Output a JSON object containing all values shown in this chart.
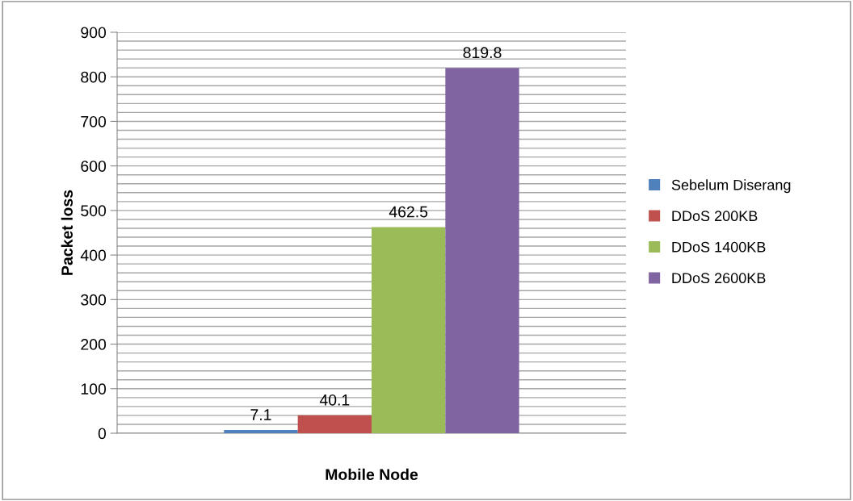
{
  "chart_data": {
    "type": "bar",
    "xlabel": "Mobile Node",
    "ylabel": "Packet loss",
    "categories": [
      null
    ],
    "series": [
      {
        "name": "Sebelum Diserang",
        "color": "#4f81bd",
        "values": [
          7.1
        ]
      },
      {
        "name": "DDoS 200KB",
        "color": "#c0504d",
        "values": [
          40.1
        ]
      },
      {
        "name": "DDoS 1400KB",
        "color": "#9bbb59",
        "values": [
          462.5
        ]
      },
      {
        "name": "DDoS 2600KB",
        "color": "#8064a2",
        "values": [
          819.8
        ]
      }
    ],
    "ylim": [
      0,
      900
    ],
    "yticks": [
      0,
      {
        "value": 20,
        "label": null
      },
      {
        "value": 40,
        "label": null
      },
      {
        "value": 60,
        "label": null
      },
      {
        "value": 80,
        "label": null
      },
      100,
      {
        "value": 120,
        "label": null
      },
      {
        "value": 140,
        "label": null
      },
      {
        "value": 160,
        "label": null
      },
      {
        "value": 180,
        "label": null
      },
      200,
      {
        "value": 220,
        "label": null
      },
      {
        "value": 240,
        "label": null
      },
      {
        "value": 260,
        "label": null
      },
      {
        "value": 280,
        "label": null
      },
      300,
      {
        "value": 320,
        "label": null
      },
      {
        "value": 340,
        "label": null
      },
      {
        "value": 360,
        "label": null
      },
      {
        "value": 380,
        "label": null
      },
      400,
      {
        "value": 420,
        "label": null
      },
      {
        "value": 440,
        "label": null
      },
      {
        "value": 460,
        "label": null
      },
      {
        "value": 480,
        "label": null
      },
      500,
      {
        "value": 520,
        "label": null
      },
      {
        "value": 540,
        "label": null
      },
      {
        "value": 560,
        "label": null
      },
      {
        "value": 580,
        "label": null
      },
      600,
      {
        "value": 620,
        "label": null
      },
      {
        "value": 640,
        "label": null
      },
      {
        "value": 660,
        "label": null
      },
      {
        "value": 680,
        "label": null
      },
      700,
      {
        "value": 720,
        "label": null
      },
      {
        "value": 740,
        "label": null
      },
      {
        "value": 760,
        "label": null
      },
      {
        "value": 780,
        "label": null
      },
      800,
      {
        "value": 820,
        "label": null
      },
      {
        "value": 840,
        "label": null
      },
      {
        "value": 860,
        "label": null
      },
      {
        "value": 880,
        "label": null
      },
      900
    ],
    "grid": "y",
    "legend": "right",
    "data_labels": true
  }
}
